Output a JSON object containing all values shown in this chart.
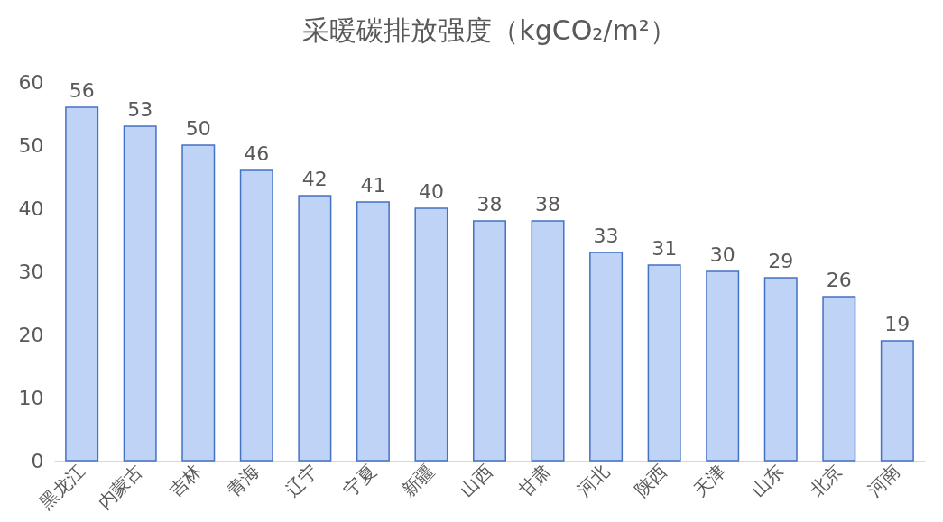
{
  "chart_data": {
    "type": "bar",
    "title": "采暖碳排放强度（kgCO₂/m²）",
    "categories": [
      "黑龙江",
      "内蒙古",
      "吉林",
      "青海",
      "辽宁",
      "宁夏",
      "新疆",
      "山西",
      "甘肃",
      "河北",
      "陕西",
      "天津",
      "山东",
      "北京",
      "河南"
    ],
    "values": [
      56,
      53,
      50,
      46,
      42,
      41,
      40,
      38,
      38,
      33,
      31,
      30,
      29,
      26,
      19
    ],
    "color": "#bed3f6",
    "ylim": [
      0,
      60
    ],
    "yticks": [
      0,
      10,
      20,
      30,
      40,
      50,
      60
    ],
    "grid": false,
    "data_labels": true
  }
}
